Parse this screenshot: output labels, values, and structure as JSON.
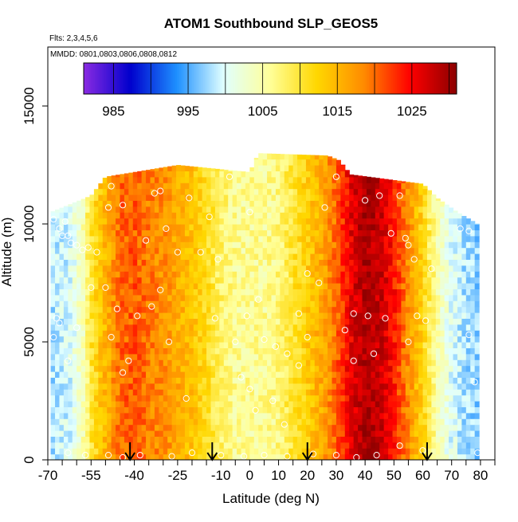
{
  "chart_data": {
    "type": "heatmap",
    "title": "ATOM1 Southbound SLP_GEOS5",
    "subtitle_flights": "Flts: 2,3,4,5,6",
    "subtitle_dates": "MMDD: 0801,0803,0806,0808,0812",
    "xlabel": "Latitude (deg N)",
    "ylabel": "Altitude (m)",
    "xlim": [
      -70,
      85
    ],
    "ylim": [
      0,
      17500
    ],
    "x_ticks": [
      -70,
      -55,
      -40,
      -25,
      -10,
      0,
      10,
      20,
      30,
      40,
      50,
      60,
      70,
      80
    ],
    "y_ticks": [
      0,
      5000,
      10000,
      15000
    ],
    "colorbar": {
      "range": [
        981,
        1031
      ],
      "ticks": [
        985,
        995,
        1005,
        1015,
        1025
      ],
      "colors": [
        "#8a2be2",
        "#0000cd",
        "#1e90ff",
        "#e0ffff",
        "#ffff99",
        "#ffd700",
        "#ff8c00",
        "#ff0000",
        "#8b0000"
      ]
    },
    "grid": false,
    "profile_slp": [
      [
        -68,
        998
      ],
      [
        -62,
        1000
      ],
      [
        -58,
        1004
      ],
      [
        -55,
        1010
      ],
      [
        -50,
        1015
      ],
      [
        -45,
        1020
      ],
      [
        -40,
        1021
      ],
      [
        -35,
        1019
      ],
      [
        -30,
        1018
      ],
      [
        -25,
        1016
      ],
      [
        -20,
        1014
      ],
      [
        -15,
        1011
      ],
      [
        -10,
        1008
      ],
      [
        -5,
        1006
      ],
      [
        0,
        1006
      ],
      [
        5,
        1006
      ],
      [
        10,
        1007
      ],
      [
        15,
        1010
      ],
      [
        20,
        1013
      ],
      [
        25,
        1016
      ],
      [
        30,
        1020
      ],
      [
        35,
        1026
      ],
      [
        40,
        1029
      ],
      [
        45,
        1028
      ],
      [
        50,
        1024
      ],
      [
        55,
        1018
      ],
      [
        60,
        1012
      ],
      [
        65,
        1005
      ],
      [
        70,
        1000
      ],
      [
        75,
        998
      ],
      [
        79,
        997
      ]
    ],
    "column_tops_m": [
      [
        -69,
        10500
      ],
      [
        -55,
        11200
      ],
      [
        -50,
        12000
      ],
      [
        -25,
        12500
      ],
      [
        0,
        12200
      ],
      [
        3,
        13000
      ],
      [
        27,
        12900
      ],
      [
        31,
        12700
      ],
      [
        35,
        12100
      ],
      [
        60,
        11700
      ],
      [
        65,
        11100
      ],
      [
        72,
        10500
      ],
      [
        79,
        10000
      ]
    ],
    "flight_markers_lat": [
      -41.5,
      -13,
      20,
      61.5
    ],
    "obs_points": [
      [
        -68,
        10200
      ],
      [
        -66,
        9800
      ],
      [
        -63,
        9500
      ],
      [
        -60,
        9100
      ],
      [
        -58,
        8900
      ],
      [
        -53,
        8800
      ],
      [
        -49,
        10700
      ],
      [
        -48,
        11600
      ],
      [
        -44,
        10800
      ],
      [
        -33,
        11300
      ],
      [
        -31,
        11400
      ],
      [
        -25,
        8800
      ],
      [
        -21,
        11100
      ],
      [
        -14,
        10300
      ],
      [
        -11,
        8500
      ],
      [
        -7,
        12000
      ],
      [
        0,
        10500
      ],
      [
        3,
        6800
      ],
      [
        -1,
        6100
      ],
      [
        5,
        5100
      ],
      [
        9,
        4800
      ],
      [
        13,
        4500
      ],
      [
        17,
        4000
      ],
      [
        20,
        5200
      ],
      [
        17,
        6200
      ],
      [
        20,
        7900
      ],
      [
        24,
        7500
      ],
      [
        26,
        10700
      ],
      [
        30,
        12000
      ],
      [
        33,
        5500
      ],
      [
        36,
        6200
      ],
      [
        40,
        11000
      ],
      [
        41,
        6100
      ],
      [
        43,
        4500
      ],
      [
        45,
        11200
      ],
      [
        49,
        9600
      ],
      [
        52,
        11200
      ],
      [
        54,
        9400
      ],
      [
        55,
        9100
      ],
      [
        57,
        8500
      ],
      [
        58,
        6100
      ],
      [
        61,
        5900
      ],
      [
        63,
        8100
      ],
      [
        73,
        9800
      ],
      [
        76,
        9700
      ],
      [
        76,
        5300
      ],
      [
        78,
        3300
      ],
      [
        79,
        300
      ],
      [
        -68,
        5200
      ],
      [
        -66,
        5800
      ],
      [
        -63,
        4200
      ],
      [
        -60,
        5600
      ],
      [
        -56,
        9000
      ],
      [
        -50,
        7300
      ],
      [
        -48,
        5200
      ],
      [
        -46,
        6400
      ],
      [
        -44,
        3700
      ],
      [
        -42,
        4200
      ],
      [
        -39,
        6100
      ],
      [
        -34,
        6500
      ],
      [
        -31,
        7200
      ],
      [
        -28,
        5000
      ],
      [
        -22,
        2600
      ],
      [
        -17,
        8800
      ],
      [
        -12,
        6000
      ],
      [
        -5,
        5000
      ],
      [
        -3,
        3500
      ],
      [
        0,
        3000
      ],
      [
        2,
        2100
      ],
      [
        8,
        2500
      ],
      [
        12,
        1500
      ],
      [
        -49,
        200
      ],
      [
        -44,
        100
      ],
      [
        -38,
        200
      ],
      [
        -27,
        150
      ],
      [
        -20,
        300
      ],
      [
        -10,
        200
      ],
      [
        -2,
        150
      ],
      [
        5,
        200
      ],
      [
        13,
        150
      ],
      [
        22,
        250
      ],
      [
        30,
        200
      ],
      [
        37,
        100
      ],
      [
        44,
        200
      ],
      [
        52,
        600
      ],
      [
        60,
        400
      ],
      [
        -63,
        300
      ],
      [
        -57,
        200
      ],
      [
        -55,
        7300
      ],
      [
        -67,
        6000
      ],
      [
        -65,
        9500
      ],
      [
        -64,
        10100
      ],
      [
        -62,
        9200
      ],
      [
        36,
        4200
      ],
      [
        47,
        6000
      ],
      [
        55,
        5000
      ],
      [
        -29,
        9800
      ],
      [
        -36,
        9300
      ]
    ]
  }
}
